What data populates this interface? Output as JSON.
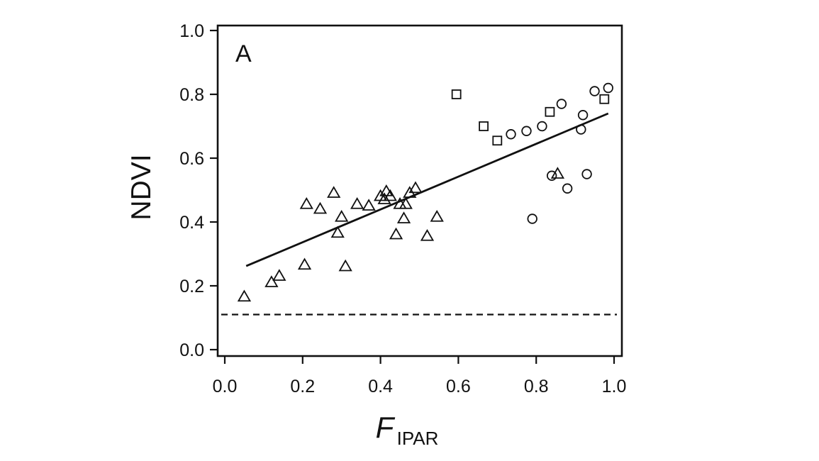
{
  "chart_data": {
    "type": "scatter",
    "panel_label": "A",
    "xlabel": {
      "main": "F",
      "subscript": "IPAR"
    },
    "ylabel": "NDVI",
    "xlim": [
      -0.02,
      1.0
    ],
    "ylim": [
      -0.02,
      1.02
    ],
    "x_ticks": [
      "0.0",
      "0.2",
      "0.4",
      "0.6",
      "0.8",
      "1.0"
    ],
    "y_ticks": [
      "0.0",
      "0.2",
      "0.4",
      "0.6",
      "0.8",
      "1.0"
    ],
    "grid": false,
    "series": [
      {
        "marker": "triangle",
        "points": [
          [
            0.05,
            0.165
          ],
          [
            0.12,
            0.21
          ],
          [
            0.14,
            0.23
          ],
          [
            0.205,
            0.265
          ],
          [
            0.21,
            0.455
          ],
          [
            0.245,
            0.44
          ],
          [
            0.28,
            0.49
          ],
          [
            0.29,
            0.365
          ],
          [
            0.3,
            0.415
          ],
          [
            0.31,
            0.26
          ],
          [
            0.34,
            0.455
          ],
          [
            0.37,
            0.45
          ],
          [
            0.4,
            0.48
          ],
          [
            0.41,
            0.47
          ],
          [
            0.415,
            0.495
          ],
          [
            0.425,
            0.48
          ],
          [
            0.44,
            0.36
          ],
          [
            0.45,
            0.455
          ],
          [
            0.46,
            0.41
          ],
          [
            0.465,
            0.455
          ],
          [
            0.475,
            0.49
          ],
          [
            0.49,
            0.505
          ],
          [
            0.52,
            0.355
          ],
          [
            0.545,
            0.415
          ],
          [
            0.855,
            0.55
          ]
        ]
      },
      {
        "marker": "square",
        "points": [
          [
            0.595,
            0.8
          ],
          [
            0.665,
            0.7
          ],
          [
            0.7,
            0.655
          ],
          [
            0.835,
            0.745
          ],
          [
            0.975,
            0.785
          ]
        ]
      },
      {
        "marker": "circle",
        "points": [
          [
            0.735,
            0.675
          ],
          [
            0.775,
            0.685
          ],
          [
            0.815,
            0.7
          ],
          [
            0.865,
            0.77
          ],
          [
            0.915,
            0.69
          ],
          [
            0.92,
            0.735
          ],
          [
            0.95,
            0.81
          ],
          [
            0.985,
            0.82
          ],
          [
            0.79,
            0.41
          ],
          [
            0.84,
            0.545
          ],
          [
            0.88,
            0.505
          ],
          [
            0.93,
            0.55
          ]
        ]
      }
    ],
    "fit_line": {
      "style": "solid",
      "x": [
        0.055,
        0.985
      ],
      "y": [
        0.262,
        0.74
      ]
    },
    "reference_line": {
      "style": "dashed",
      "y": 0.11
    }
  }
}
